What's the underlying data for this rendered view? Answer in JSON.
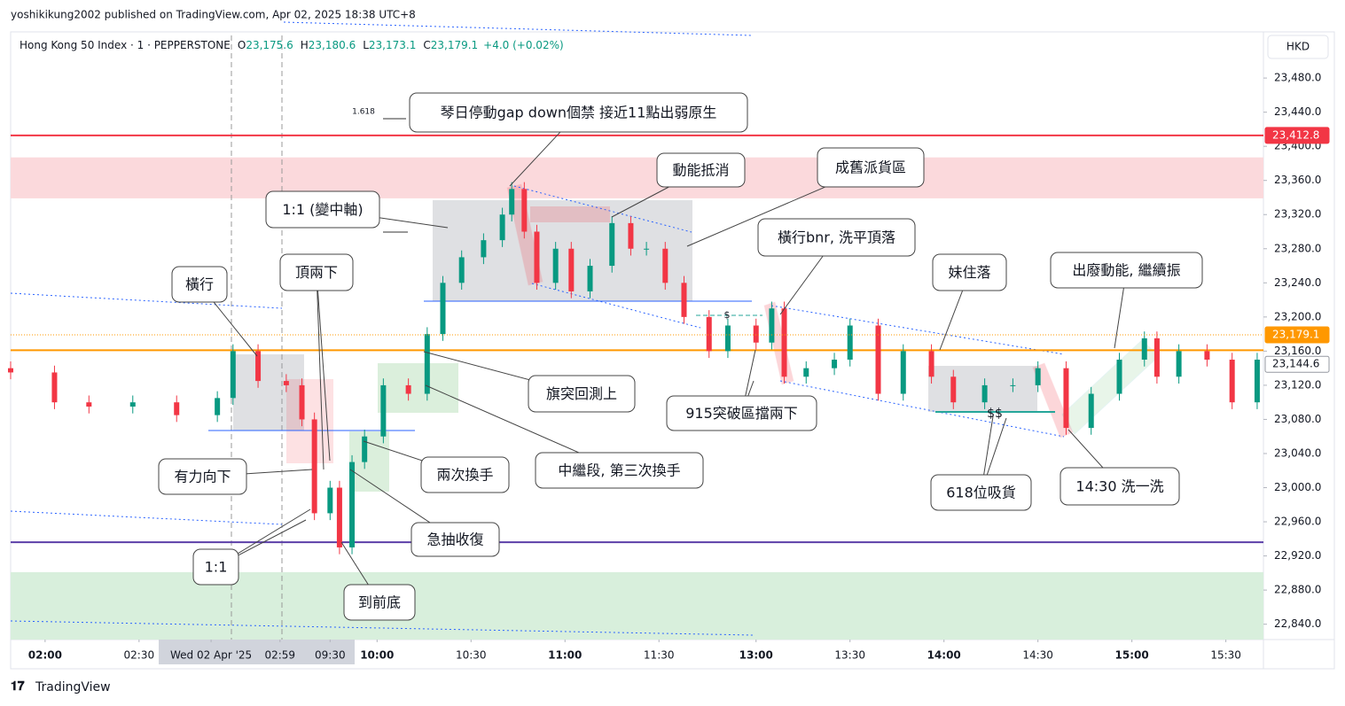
{
  "page": {
    "published_by": "yoshikikung2002 published on TradingView.com, Apr 02, 2025 18:38 UTC+8",
    "brand": "TradingView"
  },
  "chart_data": {
    "type": "candlestick",
    "symbol": "Hong Kong 50 Index · 1 · PEPPERSTONE",
    "ohlc_readout": [
      {
        "label": "O",
        "value": "23,175.6"
      },
      {
        "label": "H",
        "value": "23,180.6"
      },
      {
        "label": "L",
        "value": "23,173.1"
      },
      {
        "label": "C",
        "value": "23,179.1"
      }
    ],
    "change": "+4.0 (+0.02%)",
    "currency": "HKD",
    "up_color": "#089981",
    "down_color": "#f23645",
    "xlim": [
      0,
      400
    ],
    "ylim": [
      22822,
      23532
    ],
    "xticks": [
      {
        "value": 11,
        "label": "02:00"
      },
      {
        "value": 41,
        "label": "02:30"
      },
      {
        "value": 64,
        "label": "Wed 02 Apr '25"
      },
      {
        "value": 86,
        "label": "02:59"
      },
      {
        "value": 102,
        "label": "09:30"
      },
      {
        "value": 117,
        "label": "10:00"
      },
      {
        "value": 147,
        "label": "10:30"
      },
      {
        "value": 177,
        "label": "11:00"
      },
      {
        "value": 207,
        "label": "11:30"
      },
      {
        "value": 238,
        "label": "13:00"
      },
      {
        "value": 268,
        "label": "13:30"
      },
      {
        "value": 298,
        "label": "14:00"
      },
      {
        "value": 328,
        "label": "14:30"
      },
      {
        "value": 358,
        "label": "15:00"
      },
      {
        "value": 388,
        "label": "15:30"
      }
    ],
    "yticks": [
      {
        "value": 22840,
        "label": "22,840.0"
      },
      {
        "value": 22880,
        "label": "22,880.0"
      },
      {
        "value": 22920,
        "label": "22,920.0"
      },
      {
        "value": 22960,
        "label": "22,960.0"
      },
      {
        "value": 23000,
        "label": "23,000.0"
      },
      {
        "value": 23040,
        "label": "23,040.0"
      },
      {
        "value": 23080,
        "label": "23,080.0"
      },
      {
        "value": 23120,
        "label": "23,120.0"
      },
      {
        "value": 23160,
        "label": "23,160.0"
      },
      {
        "value": 23200,
        "label": "23,200.0"
      },
      {
        "value": 23240,
        "label": "23,240.0"
      },
      {
        "value": 23280,
        "label": "23,280.0"
      },
      {
        "value": 23320,
        "label": "23,320.0"
      },
      {
        "value": 23360,
        "label": "23,360.0"
      },
      {
        "value": 23400,
        "label": "23,400.0"
      },
      {
        "value": 23440,
        "label": "23,440.0"
      },
      {
        "value": 23480,
        "label": "23,480.0"
      }
    ],
    "price_labels": [
      {
        "value": 23412.8,
        "label": "23,412.8",
        "color": "#f23645"
      },
      {
        "value": 23179.1,
        "label": "23,179.1",
        "color": "#ff9800"
      },
      {
        "value": 23144.6,
        "label": "23,144.6",
        "color": "#ffffff"
      }
    ],
    "lines": [
      {
        "value": 23412.8,
        "color": "#f23645"
      },
      {
        "value": 23161,
        "color": "#ff9800"
      },
      {
        "value": 22936,
        "color": "#5b3fa8"
      }
    ],
    "zones": [
      {
        "from": 23387,
        "to": 23339,
        "color": "#fbd9dc"
      },
      {
        "from": 22901,
        "to": 22822,
        "color": "#d8efdc"
      }
    ],
    "candles": {
      "x": [
        0,
        14,
        25,
        39,
        53,
        66,
        71,
        79,
        88,
        93,
        97,
        102,
        105,
        109,
        113,
        119,
        127,
        133,
        138,
        144,
        151,
        157,
        160,
        164,
        168,
        174,
        179,
        185,
        192,
        198,
        203,
        209,
        215,
        223,
        229,
        238,
        243,
        247,
        254,
        263,
        268,
        277,
        285,
        294,
        301,
        311,
        320,
        328,
        337,
        345,
        354,
        362,
        366,
        373,
        382,
        390,
        398
      ],
      "open": [
        23140,
        23135,
        23100,
        23095,
        23100,
        23085,
        23105,
        23160,
        23125,
        23120,
        23080,
        22970,
        23000,
        22930,
        23030,
        23060,
        23120,
        23110,
        23180,
        23240,
        23270,
        23290,
        23320,
        23350,
        23300,
        23240,
        23280,
        23230,
        23260,
        23310,
        23280,
        23280,
        23240,
        23200,
        23160,
        23190,
        23170,
        23210,
        23130,
        23140,
        23150,
        23190,
        23110,
        23160,
        23130,
        23100,
        23120,
        23120,
        23140,
        23070,
        23110,
        23150,
        23175,
        23130,
        23160,
        23150,
        23100
      ],
      "high": [
        23148,
        23143,
        23108,
        23108,
        23108,
        23113,
        23168,
        23168,
        23133,
        23128,
        23088,
        23008,
        23008,
        23038,
        23068,
        23128,
        23128,
        23188,
        23248,
        23278,
        23298,
        23328,
        23358,
        23358,
        23308,
        23288,
        23288,
        23268,
        23318,
        23318,
        23288,
        23288,
        23248,
        23208,
        23198,
        23198,
        23218,
        23218,
        23148,
        23158,
        23198,
        23198,
        23168,
        23168,
        23138,
        23128,
        23128,
        23148,
        23148,
        23118,
        23158,
        23183,
        23183,
        23168,
        23168,
        23158,
        23158
      ],
      "low": [
        23127,
        23092,
        23087,
        23087,
        23077,
        23077,
        23097,
        23117,
        23112,
        23072,
        22962,
        22962,
        22922,
        22922,
        23022,
        23052,
        23102,
        23102,
        23172,
        23232,
        23262,
        23282,
        23312,
        23292,
        23232,
        23232,
        23222,
        23222,
        23252,
        23272,
        23272,
        23232,
        23192,
        23152,
        23152,
        23162,
        23162,
        23122,
        23122,
        23132,
        23142,
        23102,
        23102,
        23122,
        23092,
        23092,
        23112,
        23112,
        23062,
        23062,
        23102,
        23142,
        23122,
        23122,
        23142,
        23092,
        23092
      ],
      "close": [
        23135,
        23100,
        23095,
        23100,
        23085,
        23105,
        23160,
        23125,
        23120,
        23080,
        22970,
        23000,
        22930,
        23030,
        23060,
        23120,
        23110,
        23180,
        23240,
        23270,
        23290,
        23320,
        23350,
        23300,
        23240,
        23280,
        23230,
        23260,
        23310,
        23280,
        23280,
        23240,
        23200,
        23160,
        23190,
        23170,
        23210,
        23130,
        23140,
        23150,
        23190,
        23110,
        23160,
        23130,
        23100,
        23120,
        23120,
        23140,
        23070,
        23110,
        23150,
        23175,
        23130,
        23160,
        23150,
        23100,
        23150
      ]
    },
    "labels": [
      "1.618",
      "$",
      "$$"
    ],
    "annotations": [
      "琴日停動gap down個禁 接近11點出弱原生",
      "動能抵消",
      "成舊派貨區",
      "1:1 (變中軸)",
      "橫行bnr, 洗平頂落",
      "妹住落",
      "出廢動能, 繼續振",
      "橫行",
      "頂兩下",
      "旗突回測上",
      "915突破區擋兩下",
      "兩次換手",
      "中繼段, 第三次換手",
      "有力向下",
      "急抽收復",
      "1:1",
      "618位吸貨",
      "14:30 洗一洗",
      "到前底"
    ]
  }
}
